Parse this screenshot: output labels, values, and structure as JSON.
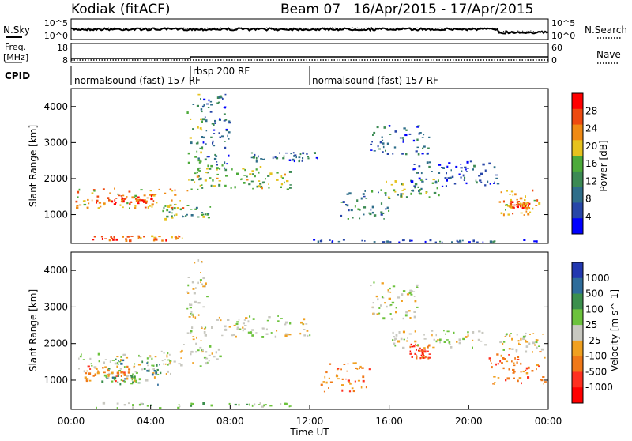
{
  "header": {
    "station": "Kodiak (fitACF)",
    "beam": "Beam 07",
    "dates": "16/Apr/2015 - 17/Apr/2015"
  },
  "top_panels": {
    "nsky_label": "N.Sky",
    "nsearch_label": "N.Search",
    "nsky_ticks": [
      "10^5",
      "10^0"
    ],
    "nsearch_ticks": [
      "10^5",
      "10^0"
    ],
    "freq_label": "Freq.",
    "freq_unit": "[MHz]",
    "freq_ticks": [
      "18",
      "8"
    ],
    "nave_label": "Nave",
    "nave_ticks": [
      "60",
      "0"
    ],
    "cpid_label": "CPID",
    "cpid_segments": [
      {
        "label": "normalsound (fast) 157 RF",
        "start_h": 0,
        "end_h": 6
      },
      {
        "label": "rbsp 200 RF",
        "start_h": 6,
        "end_h": 12
      },
      {
        "label": "normalsound (fast) 157 RF",
        "start_h": 12,
        "end_h": 24
      }
    ]
  },
  "colors": {
    "power": [
      "#0000ff",
      "#2746a8",
      "#2f6e8a",
      "#3c8a54",
      "#4caa3a",
      "#e6c21e",
      "#f08a14",
      "#ee4a10",
      "#ff0000"
    ],
    "velocity": [
      "#2238b0",
      "#2e6c9a",
      "#3b8f4c",
      "#6cc23c",
      "#c8c8c0",
      "#f0a020",
      "#f07818",
      "#ff3020",
      "#ff0000"
    ]
  },
  "chart_data": [
    {
      "type": "heatmap",
      "name": "power",
      "xlabel": "",
      "ylabel": "Slant Range [km]",
      "xlim": [
        0,
        24
      ],
      "ylim": [
        200,
        4500
      ],
      "y_ticks": [
        1000,
        2000,
        3000,
        4000
      ],
      "colorbar_label": "Power [dB]",
      "colorbar_ticks": [
        "28",
        "24",
        "20",
        "16",
        "12",
        "8",
        "4"
      ],
      "colorbar_range": [
        0,
        32
      ],
      "bands": [
        {
          "t": [
            0.2,
            6.0
          ],
          "r": [
            1200,
            1750
          ],
          "v": 22
        },
        {
          "t": [
            0.8,
            4.2
          ],
          "r": [
            1300,
            1550
          ],
          "v": 28
        },
        {
          "t": [
            1.0,
            6.3
          ],
          "r": [
            300,
            430
          ],
          "v": 27
        },
        {
          "t": [
            4.5,
            7.0
          ],
          "r": [
            900,
            1300
          ],
          "v": 14
        },
        {
          "t": [
            5.8,
            6.6
          ],
          "r": [
            1900,
            4400
          ],
          "v": 14
        },
        {
          "t": [
            6.6,
            8.0
          ],
          "r": [
            2300,
            4400
          ],
          "v": 6
        },
        {
          "t": [
            6.0,
            11.0
          ],
          "r": [
            1700,
            2400
          ],
          "v": 17
        },
        {
          "t": [
            9.0,
            12.4
          ],
          "r": [
            2500,
            2750
          ],
          "v": 7
        },
        {
          "t": [
            12.0,
            23.8
          ],
          "r": [
            250,
            320
          ],
          "v": 5
        },
        {
          "t": [
            13.5,
            16.0
          ],
          "r": [
            900,
            1700
          ],
          "v": 10
        },
        {
          "t": [
            15.0,
            18.0
          ],
          "r": [
            2700,
            3500
          ],
          "v": 6
        },
        {
          "t": [
            15.5,
            18.5
          ],
          "r": [
            1500,
            2000
          ],
          "v": 15
        },
        {
          "t": [
            17.0,
            21.5
          ],
          "r": [
            1800,
            2500
          ],
          "v": 6
        },
        {
          "t": [
            21.5,
            23.5
          ],
          "r": [
            1000,
            1700
          ],
          "v": 22
        },
        {
          "t": [
            22.0,
            23.0
          ],
          "r": [
            1200,
            1400
          ],
          "v": 27
        }
      ]
    },
    {
      "type": "heatmap",
      "name": "velocity",
      "xlabel": "Time UT",
      "ylabel": "Slant Range [km]",
      "xlim": [
        0,
        24
      ],
      "ylim": [
        200,
        4500
      ],
      "x_ticks": [
        "00:00",
        "04:00",
        "08:00",
        "12:00",
        "16:00",
        "20:00",
        "00:00"
      ],
      "y_ticks": [
        1000,
        2000,
        3000,
        4000
      ],
      "colorbar_label": "Velocity [m s^-1]",
      "colorbar_ticks": [
        "1000",
        "500",
        "100",
        "25",
        "-25",
        "-100",
        "-500",
        "-1000"
      ],
      "bands": [
        {
          "t": [
            0.2,
            5.0
          ],
          "r": [
            1000,
            1750
          ],
          "c": 4
        },
        {
          "t": [
            0.5,
            3.0
          ],
          "r": [
            1000,
            1400
          ],
          "c": 6
        },
        {
          "t": [
            1.5,
            4.5
          ],
          "r": [
            900,
            1600
          ],
          "c": 2
        },
        {
          "t": [
            1.0,
            11.5
          ],
          "r": [
            250,
            400
          ],
          "c": 3
        },
        {
          "t": [
            4.5,
            7.5
          ],
          "r": [
            1400,
            2000
          ],
          "c": 4
        },
        {
          "t": [
            5.8,
            6.8
          ],
          "r": [
            2000,
            4400
          ],
          "c": 4
        },
        {
          "t": [
            7.0,
            12.0
          ],
          "r": [
            2200,
            2800
          ],
          "c": 4
        },
        {
          "t": [
            12.5,
            15.0
          ],
          "r": [
            700,
            1500
          ],
          "c": 6
        },
        {
          "t": [
            15.0,
            17.5
          ],
          "r": [
            2700,
            3700
          ],
          "c": 4
        },
        {
          "t": [
            17.0,
            18.0
          ],
          "r": [
            1600,
            2000
          ],
          "c": 7
        },
        {
          "t": [
            16.0,
            21.0
          ],
          "r": [
            1900,
            2400
          ],
          "c": 4
        },
        {
          "t": [
            21.0,
            23.8
          ],
          "r": [
            900,
            1800
          ],
          "c": 6
        },
        {
          "t": [
            21.5,
            23.8
          ],
          "r": [
            1800,
            2300
          ],
          "c": 4
        }
      ]
    }
  ]
}
